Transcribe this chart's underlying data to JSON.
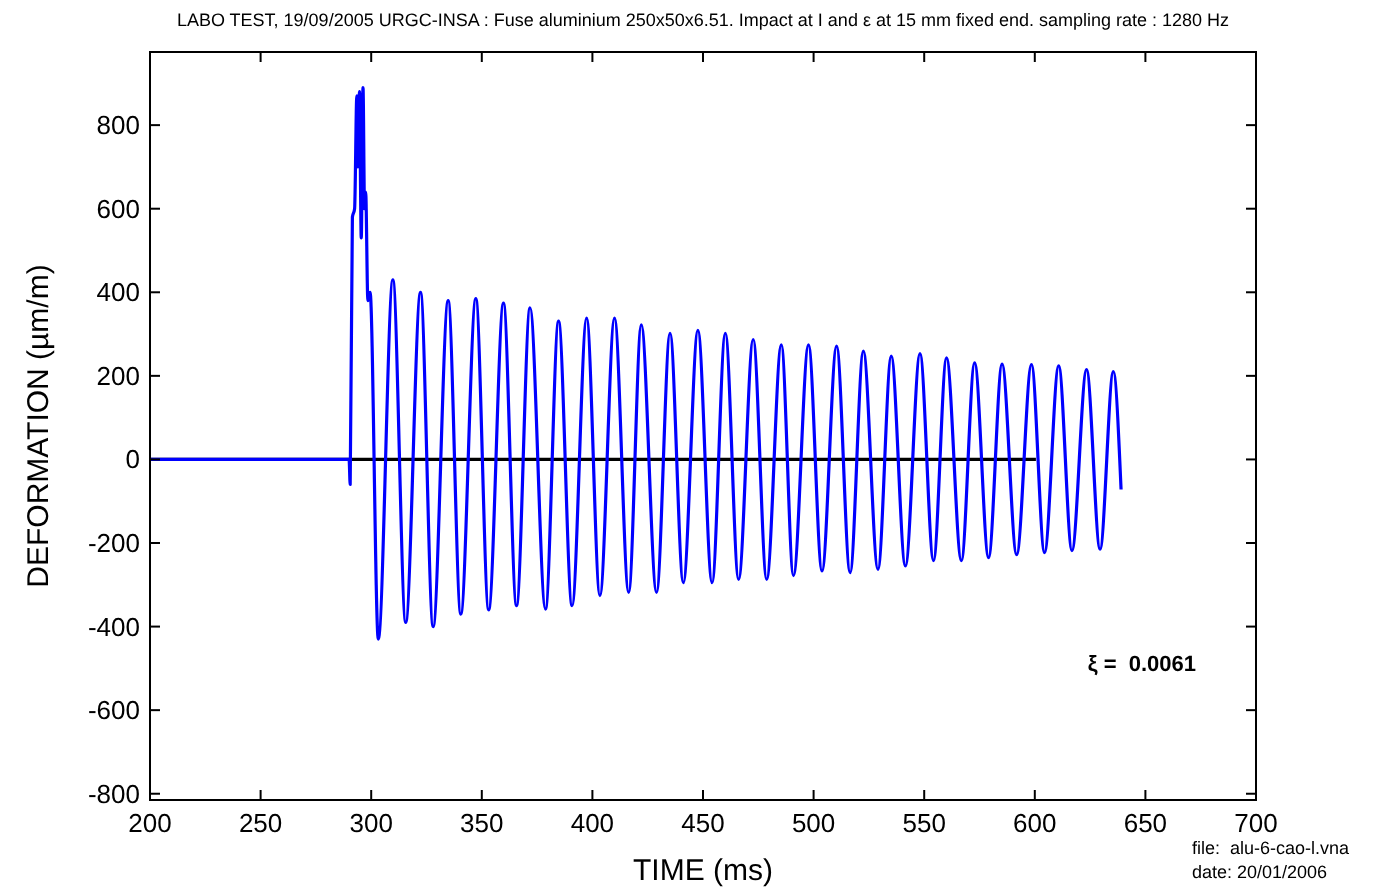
{
  "chart_data": {
    "type": "line",
    "title": "LABO TEST, 19/09/2005 URGC-INSA : Fuse aluminium 250x50x6.51. Impact at I and ε at 15 mm fixed end. sampling rate : 1280 Hz",
    "xlabel": "TIME (ms)",
    "ylabel": "DEFORMATION  (µm/m)",
    "annotations": [
      "ξ =  0.0061",
      "file:  alu-6-cao-l.vna",
      "date: 20/01/2006"
    ],
    "xlim": [
      200,
      700
    ],
    "xticks": [
      200,
      250,
      300,
      350,
      400,
      450,
      500,
      550,
      600,
      650,
      700
    ],
    "ylim": [
      -815,
      975
    ],
    "yticks": [
      -800,
      -600,
      -400,
      -200,
      0,
      200,
      400,
      600,
      800
    ],
    "grid": false,
    "marker": "none",
    "line_style": "solid",
    "series": [
      {
        "color": "#000000",
        "x": [
          200,
          600.5
        ],
        "values": [
          0,
          0
        ]
      },
      {
        "color": "#0000ff",
        "x": [
          200,
          290,
          290.5,
          291.5,
          292.5,
          293.5,
          294,
          294.7,
          295.5,
          296.3,
          297,
          297.5,
          298.5,
          299.5,
          303.2,
          309.8,
          315.6,
          322.3,
          328,
          334.8,
          340.5,
          347.3,
          353.1,
          359.8,
          365.7,
          371.8,
          378.8,
          384.7,
          390.8,
          397.4,
          403.4,
          410,
          416.4,
          422.1,
          429,
          435.1,
          441.1,
          447.7,
          454.1,
          460.1,
          466.1,
          472.7,
          478.8,
          485.4,
          490.9,
          497.7,
          503.8,
          510.4,
          516.5,
          522.5,
          529.1,
          535.1,
          541.5,
          548.1,
          554.2,
          560.1,
          566.8,
          572.8,
          579.1,
          585.2,
          591.8,
          598.5,
          604.4,
          610.8,
          616.8,
          623.4,
          629.5,
          635.5,
          639
        ],
        "values": [
          0,
          0,
          -60,
          580,
          600,
          870,
          700,
          880,
          530,
          890,
          600,
          640,
          380,
          400,
          -430,
          430,
          -390,
          400,
          -400,
          380,
          -370,
          385,
          -360,
          374,
          -350,
          363,
          -358,
          331,
          -350,
          338,
          -326,
          338,
          -318,
          322,
          -318,
          302,
          -295,
          309,
          -295,
          302,
          -287,
          287,
          -287,
          274,
          -278,
          274,
          -267,
          271,
          -271,
          259,
          -263,
          247,
          -255,
          253,
          -242,
          243,
          -242,
          231,
          -235,
          228,
          -228,
          227,
          -223,
          224,
          -218,
          215,
          -215,
          210,
          -72
        ]
      }
    ]
  }
}
